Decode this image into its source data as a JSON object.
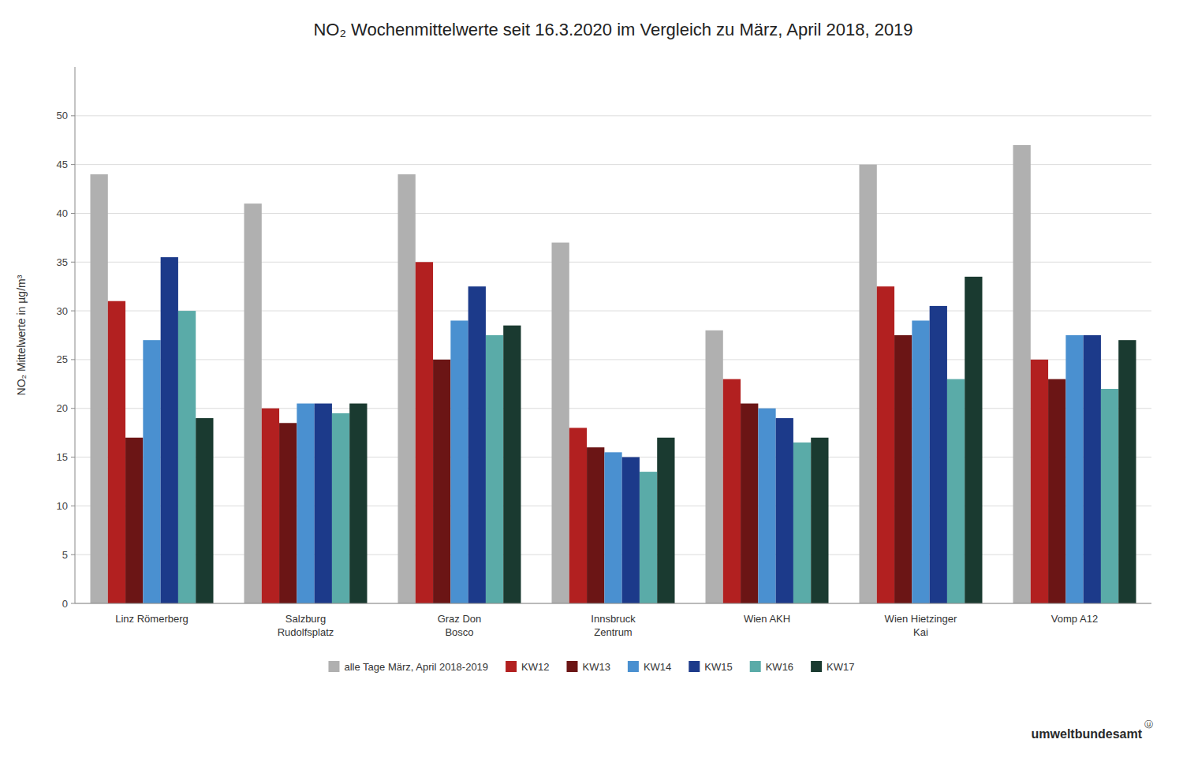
{
  "chart_data": {
    "type": "bar",
    "title": "NO₂ Wochenmittelwerte seit 16.3.2020 im Vergleich zu März, April 2018, 2019",
    "y_label": "NO₂ Mittelwerte in µg/m³",
    "categories": [
      "Linz Römerberg",
      "Salzburg\nRudolfsplatz",
      "Graz Don\nBosco",
      "Innsbruck\nZentrum",
      "Wien AKH",
      "Wien Hietzinger\nKai",
      "Vomp A12"
    ],
    "series": [
      {
        "name": "alle Tage März, April 2018-2019",
        "color": "#b0b0b0",
        "values": [
          44,
          41,
          44,
          37,
          28,
          45,
          47
        ]
      },
      {
        "name": "KW12",
        "color": "#b22020",
        "values": [
          31,
          20,
          35,
          18,
          23,
          32.5,
          25
        ]
      },
      {
        "name": "KW13",
        "color": "#6b1515",
        "values": [
          17,
          18.5,
          25,
          16,
          20.5,
          27.5,
          23
        ]
      },
      {
        "name": "KW14",
        "color": "#4a90d0",
        "values": [
          27,
          20.5,
          29,
          15.5,
          20,
          29,
          27.5
        ]
      },
      {
        "name": "KW15",
        "color": "#1c3a8a",
        "values": [
          35.5,
          20.5,
          32.5,
          15,
          19,
          30.5,
          27.5
        ]
      },
      {
        "name": "KW16",
        "color": "#5aaba8",
        "values": [
          30,
          19.5,
          27.5,
          13.5,
          16.5,
          23,
          22
        ]
      },
      {
        "name": "KW17",
        "color": "#1a3a30",
        "values": [
          19,
          20.5,
          28.5,
          17,
          17,
          33.5,
          27
        ]
      }
    ],
    "ylim": [
      0,
      55
    ],
    "yticks": [
      0,
      5,
      10,
      15,
      20,
      25,
      30,
      35,
      40,
      45,
      50
    ],
    "grid": true,
    "legend": "bottom",
    "annotations": [
      "umweltbundesamt",
      "ⓤ"
    ]
  }
}
